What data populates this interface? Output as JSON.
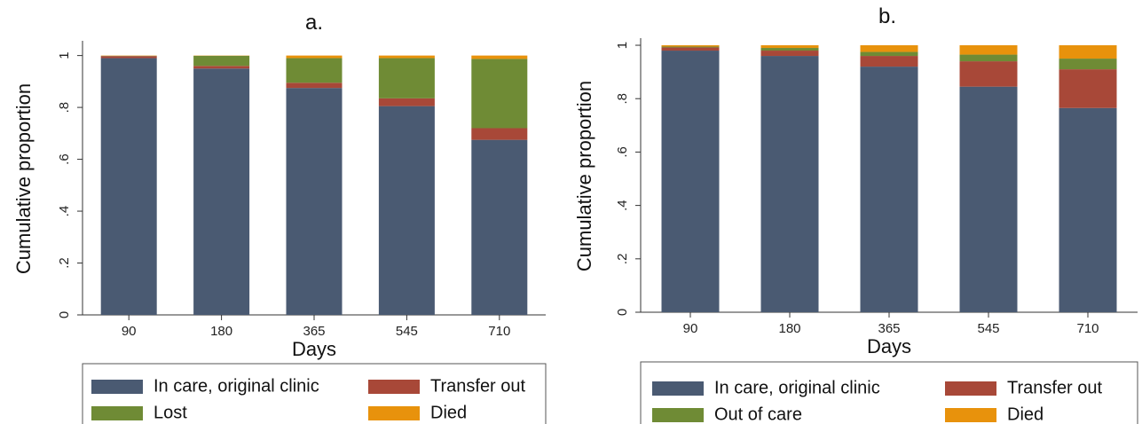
{
  "chart_data": [
    {
      "type": "bar",
      "stacked": true,
      "title": "a.",
      "xlabel": "Days",
      "ylabel": "Cumulative proportion",
      "ylim": [
        0,
        1.05
      ],
      "yticks": [
        0,
        0.2,
        0.4,
        0.6,
        0.8,
        1
      ],
      "ytick_labels": [
        "0",
        ".2",
        ".4",
        ".6",
        ".8",
        "1"
      ],
      "categories": [
        "90",
        "180",
        "365",
        "545",
        "710"
      ],
      "legend_position": "bottom",
      "series": [
        {
          "name": "In care, original clinic",
          "color": "#4a5a72",
          "values": [
            0.99,
            0.95,
            0.875,
            0.805,
            0.675
          ]
        },
        {
          "name": "Transfer out",
          "color": "#a84838",
          "values": [
            0.008,
            0.01,
            0.02,
            0.03,
            0.045
          ]
        },
        {
          "name": "Lost",
          "color": "#6f8b35",
          "values": [
            0.001,
            0.039,
            0.095,
            0.155,
            0.267
          ]
        },
        {
          "name": "Died",
          "color": "#e8920c",
          "values": [
            0.001,
            0.001,
            0.01,
            0.01,
            0.013
          ]
        }
      ]
    },
    {
      "type": "bar",
      "stacked": true,
      "title": "b.",
      "xlabel": "Days",
      "ylabel": "Cumulative proportion",
      "ylim": [
        0,
        1.02
      ],
      "yticks": [
        0,
        0.2,
        0.4,
        0.6,
        0.8,
        1
      ],
      "ytick_labels": [
        "0",
        ".2",
        ".4",
        ".6",
        ".8",
        "1"
      ],
      "categories": [
        "90",
        "180",
        "365",
        "545",
        "710"
      ],
      "legend_position": "bottom",
      "series": [
        {
          "name": "In care, original clinic",
          "color": "#4a5a72",
          "values": [
            0.98,
            0.96,
            0.92,
            0.845,
            0.765
          ]
        },
        {
          "name": "Transfer out",
          "color": "#a84838",
          "values": [
            0.012,
            0.02,
            0.04,
            0.095,
            0.145
          ]
        },
        {
          "name": "Out of care",
          "color": "#6f8b35",
          "values": [
            0.003,
            0.01,
            0.015,
            0.025,
            0.04
          ]
        },
        {
          "name": "Died",
          "color": "#e8920c",
          "values": [
            0.005,
            0.01,
            0.025,
            0.035,
            0.05
          ]
        }
      ]
    }
  ]
}
